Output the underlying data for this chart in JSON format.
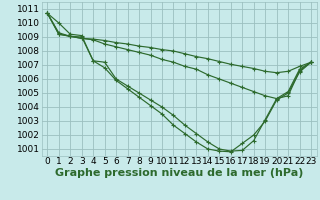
{
  "background_color": "#c8eaea",
  "grid_color": "#9bbfbf",
  "line_color": "#2d6a2d",
  "xlabel": "Graphe pression niveau de la mer (hPa)",
  "xlabel_fontsize": 8,
  "tick_fontsize": 6.5,
  "ylim": [
    1000.5,
    1011.5
  ],
  "xlim": [
    -0.5,
    23.5
  ],
  "yticks": [
    1001,
    1002,
    1003,
    1004,
    1005,
    1006,
    1007,
    1008,
    1009,
    1010,
    1011
  ],
  "xticks": [
    0,
    1,
    2,
    3,
    4,
    5,
    6,
    7,
    8,
    9,
    10,
    11,
    12,
    13,
    14,
    15,
    16,
    17,
    18,
    19,
    20,
    21,
    22,
    23
  ],
  "curves": [
    [
      1010.7,
      1010.0,
      1009.2,
      1009.1,
      1007.3,
      1006.8,
      1005.9,
      1005.3,
      1004.7,
      1004.1,
      1003.5,
      1002.7,
      1002.1,
      1001.5,
      1001.0,
      1000.85,
      1000.8,
      1001.4,
      1002.0,
      1003.0,
      1004.5,
      1005.0,
      1006.5,
      1007.2
    ],
    [
      1010.7,
      1009.3,
      1009.05,
      1009.0,
      1007.3,
      1007.2,
      1006.0,
      1005.5,
      1005.0,
      1004.5,
      1004.0,
      1003.4,
      1002.7,
      1002.1,
      1001.5,
      1001.0,
      1000.85,
      1000.9,
      1001.6,
      1003.1,
      1004.6,
      1005.1,
      1006.7,
      1007.2
    ],
    [
      1010.7,
      1009.2,
      1009.05,
      1008.9,
      1008.8,
      1008.5,
      1008.3,
      1008.1,
      1007.9,
      1007.7,
      1007.4,
      1007.2,
      1006.9,
      1006.7,
      1006.3,
      1006.0,
      1005.7,
      1005.4,
      1005.1,
      1004.8,
      1004.6,
      1004.8,
      1006.6,
      1007.2
    ],
    [
      1010.7,
      1009.2,
      1009.05,
      1008.9,
      1008.85,
      1008.75,
      1008.6,
      1008.5,
      1008.35,
      1008.25,
      1008.1,
      1008.0,
      1007.8,
      1007.6,
      1007.45,
      1007.25,
      1007.05,
      1006.9,
      1006.75,
      1006.55,
      1006.45,
      1006.55,
      1006.9,
      1007.2
    ]
  ]
}
